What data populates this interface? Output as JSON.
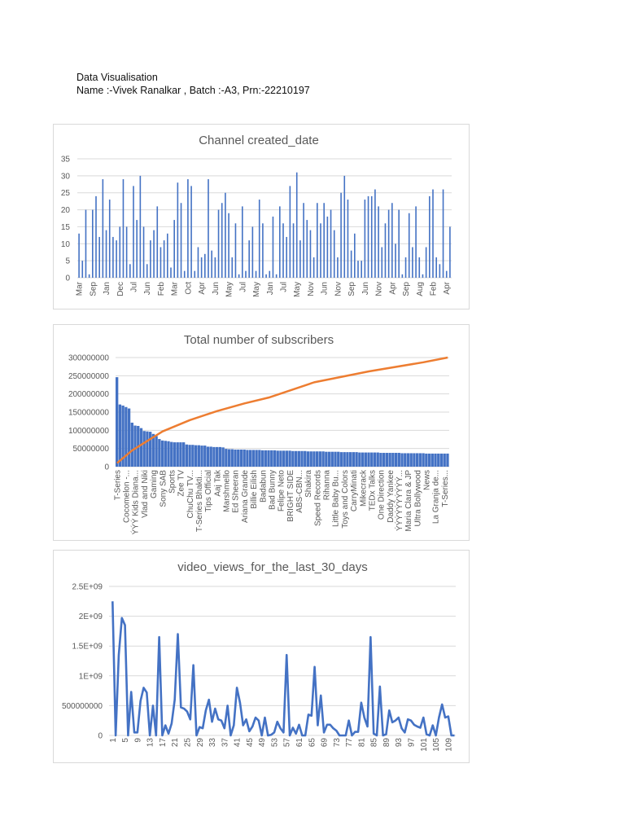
{
  "document": {
    "heading": "Data Visualisation",
    "subheading": "Name :-Vivek Ranalkar , Batch :-A3, Prn:-22210197"
  },
  "colors": {
    "bar": "#4472c4",
    "line_orange": "#ed7d31",
    "grid": "#d9d9d9",
    "text": "#595959"
  },
  "chart_data": [
    {
      "type": "bar",
      "title": "Channel created_date",
      "ylim": [
        0,
        35
      ],
      "yticks": [
        "0",
        "5",
        "10",
        "15",
        "20",
        "25",
        "30",
        "35"
      ],
      "grid": true,
      "xtick_labels": [
        "Mar",
        "Sep",
        "Jan",
        "Dec",
        "Jul",
        "Jun",
        "Feb",
        "Mar",
        "Oct",
        "Apr",
        "Jun",
        "May",
        "Jul",
        "May",
        "Jan",
        "Jul",
        "May",
        "Nov",
        "Jun",
        "Nov",
        "Sep",
        "Jun",
        "Nov",
        "Apr",
        "Sep",
        "Aug",
        "Feb",
        "Apr"
      ],
      "values": [
        13,
        5,
        20,
        1,
        20,
        24,
        12,
        29,
        14,
        23,
        12,
        11,
        15,
        29,
        15,
        4,
        27,
        17,
        30,
        15,
        4,
        11,
        14,
        21,
        9,
        11,
        13,
        3,
        17,
        28,
        22,
        2,
        29,
        27,
        2,
        9,
        6,
        7,
        29,
        8,
        6,
        20,
        22,
        25,
        19,
        6,
        16,
        1,
        21,
        2,
        11,
        15,
        2,
        23,
        16,
        1,
        2,
        18,
        1,
        21,
        16,
        12,
        27,
        16,
        31,
        11,
        22,
        17,
        14,
        6,
        22,
        16,
        22,
        18,
        20,
        14,
        6,
        25,
        30,
        23,
        8,
        13,
        5,
        5,
        23,
        24,
        24,
        26,
        21,
        9,
        16,
        20,
        22,
        10,
        20,
        1,
        6,
        19,
        9,
        21,
        6,
        1,
        9,
        24,
        26,
        6,
        4,
        26,
        2,
        15
      ]
    },
    {
      "type": "bar",
      "title": "Total number of subscribers",
      "ylim": [
        0,
        300000000
      ],
      "yticks": [
        "0",
        "50000000",
        "100000000",
        "150000000",
        "200000000",
        "250000000",
        "300000000"
      ],
      "grid": true,
      "xtick_labels": [
        "T-Series",
        "Cocomelon -...",
        "ÝÝÝ Kids Diana...",
        "Vlad and Niki",
        "Gaming",
        "Sony SAB",
        "Sports",
        "Zee TV",
        "ChuChu TV...",
        "T-Series Bhakti...",
        "Tips Official",
        "Aaj Tak",
        "Marshmello",
        "Ed Sheeran",
        "Ariana Grande",
        "Billie Eilish",
        "Badabun",
        "Bad Bunny",
        "Felipe Neto",
        "BRIGHT SIDE",
        "ABS-CBN...",
        "Shakira",
        "Speed Records",
        "Rihanna",
        "Little Baby Bu...",
        "Toys and Colors",
        "CarryMinati",
        "Mikecrack",
        "TEDx Talks",
        "One Direction",
        "Daddy Yankee",
        "ÝÝÝÝÝÝÝÝÝÝ...",
        "Maria Clara & JP",
        "Ultra Bollywood",
        "News",
        "La Granja de...",
        "T-Series..."
      ],
      "values": [
        246000000,
        171000000,
        168000000,
        164000000,
        160000000,
        121000000,
        113000000,
        112000000,
        106000000,
        98000000,
        97000000,
        96000000,
        90000000,
        84000000,
        76000000,
        72000000,
        71000000,
        70000000,
        68000000,
        67000000,
        67000000,
        67000000,
        67000000,
        61000000,
        60000000,
        60000000,
        59000000,
        59000000,
        58000000,
        58000000,
        55000000,
        55000000,
        54000000,
        54000000,
        54000000,
        53000000,
        49000000,
        48000000,
        48000000,
        47000000,
        47000000,
        47000000,
        47000000,
        46000000,
        46000000,
        46000000,
        46000000,
        46000000,
        45000000,
        45000000,
        45000000,
        45000000,
        45000000,
        44000000,
        44000000,
        44000000,
        44000000,
        44000000,
        43000000,
        43000000,
        43000000,
        43000000,
        43000000,
        42000000,
        42000000,
        42000000,
        42000000,
        42000000,
        42000000,
        41000000,
        41000000,
        41000000,
        41000000,
        41000000,
        40000000,
        40000000,
        40000000,
        40000000,
        40000000,
        40000000,
        39000000,
        39000000,
        39000000,
        39000000,
        39000000,
        39000000,
        39000000,
        38000000,
        38000000,
        38000000,
        38000000,
        38000000,
        38000000,
        38000000,
        37000000,
        37000000,
        37000000,
        37000000,
        37000000,
        37000000,
        37000000,
        37000000,
        36000000,
        36000000,
        36000000,
        36000000,
        36000000,
        36000000,
        36000000,
        36000000
      ],
      "line": [
        {
          "bar": 0,
          "value": 10000000
        },
        {
          "bar": 5,
          "value": 45000000
        },
        {
          "bar": 15,
          "value": 97000000
        },
        {
          "bar": 24,
          "value": 128000000
        },
        {
          "bar": 33,
          "value": 153000000
        },
        {
          "bar": 42,
          "value": 174000000
        },
        {
          "bar": 50,
          "value": 190000000
        },
        {
          "bar": 65,
          "value": 232000000
        },
        {
          "bar": 83,
          "value": 262000000
        },
        {
          "bar": 101,
          "value": 287000000
        },
        {
          "bar": 109,
          "value": 300000000
        }
      ]
    },
    {
      "type": "line",
      "title": "video_views_for_the_last_30_days",
      "ylim": [
        0,
        2500000000
      ],
      "yticks": [
        "0",
        "500000000",
        "1E+09",
        "1.5E+09",
        "2E+09",
        "2.5E+09"
      ],
      "grid": true,
      "xtick_labels": [
        "1",
        "5",
        "9",
        "13",
        "17",
        "21",
        "25",
        "29",
        "33",
        "37",
        "41",
        "45",
        "49",
        "53",
        "57",
        "61",
        "65",
        "69",
        "73",
        "77",
        "81",
        "85",
        "89",
        "93",
        "97",
        "101",
        "105",
        "109"
      ],
      "values": [
        2250000000,
        0,
        1350000000,
        1970000000,
        1850000000,
        0,
        730000000,
        50000000,
        50000000,
        580000000,
        800000000,
        720000000,
        0,
        500000000,
        0,
        1650000000,
        0,
        170000000,
        30000000,
        200000000,
        600000000,
        1700000000,
        470000000,
        450000000,
        400000000,
        270000000,
        1180000000,
        0,
        140000000,
        120000000,
        420000000,
        600000000,
        230000000,
        450000000,
        270000000,
        250000000,
        120000000,
        500000000,
        0,
        170000000,
        800000000,
        550000000,
        170000000,
        270000000,
        70000000,
        150000000,
        300000000,
        250000000,
        0,
        300000000,
        0,
        10000000,
        50000000,
        230000000,
        120000000,
        50000000,
        1350000000,
        0,
        130000000,
        30000000,
        180000000,
        0,
        0,
        350000000,
        330000000,
        1150000000,
        170000000,
        670000000,
        50000000,
        180000000,
        180000000,
        120000000,
        80000000,
        0,
        0,
        0,
        250000000,
        0,
        60000000,
        60000000,
        550000000,
        300000000,
        150000000,
        1650000000,
        30000000,
        0,
        820000000,
        0,
        20000000,
        420000000,
        220000000,
        250000000,
        300000000,
        120000000,
        50000000,
        270000000,
        250000000,
        180000000,
        150000000,
        130000000,
        300000000,
        20000000,
        0,
        170000000,
        0,
        300000000,
        520000000,
        300000000,
        320000000,
        0,
        0
      ]
    }
  ]
}
